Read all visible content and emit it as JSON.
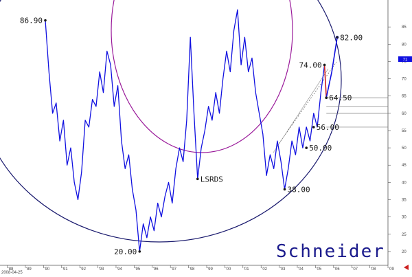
{
  "chart_data": {
    "type": "line",
    "title": "",
    "xlabel": "",
    "ylabel": "",
    "xlim": [
      1987.6,
      2009.0
    ],
    "ylim": [
      16,
      92
    ],
    "x_ticks": [
      "'88",
      "'89",
      "'90",
      "'91",
      "'92",
      "'93",
      "'94",
      "'95",
      "'96",
      "'97",
      "'98",
      "'99",
      "'00",
      "'01",
      "'02",
      "'03",
      "'04",
      "'05",
      "'06",
      "'07",
      "'08",
      "'09"
    ],
    "y_ticks": [
      "85",
      "80",
      "75",
      "70",
      "65",
      "60",
      "55",
      "50",
      "45",
      "40",
      "35",
      "30",
      "25",
      "20"
    ],
    "current_value": "71",
    "footer_text": "2008-04-25",
    "brand": "Schneider",
    "colors": {
      "price": "#1010e0",
      "arc_big": "#1a1a6e",
      "arc_small": "#9a1a9a",
      "arrow": "#cc2020",
      "guide": "#777777"
    },
    "series": [
      {
        "values": [
          [
            1990.1,
            86.9
          ],
          [
            1990.3,
            72
          ],
          [
            1990.5,
            60
          ],
          [
            1990.7,
            63
          ],
          [
            1990.9,
            52
          ],
          [
            1991.1,
            58
          ],
          [
            1991.3,
            45
          ],
          [
            1991.5,
            50
          ],
          [
            1991.7,
            40
          ],
          [
            1991.9,
            35
          ],
          [
            1992.1,
            43
          ],
          [
            1992.3,
            58
          ],
          [
            1992.5,
            56
          ],
          [
            1992.7,
            64
          ],
          [
            1992.9,
            62
          ],
          [
            1993.1,
            72
          ],
          [
            1993.3,
            66
          ],
          [
            1993.5,
            78
          ],
          [
            1993.7,
            74
          ],
          [
            1993.9,
            62
          ],
          [
            1994.1,
            68
          ],
          [
            1994.3,
            52
          ],
          [
            1994.5,
            44
          ],
          [
            1994.7,
            48
          ],
          [
            1994.9,
            38
          ],
          [
            1995.1,
            32
          ],
          [
            1995.3,
            20
          ],
          [
            1995.5,
            28
          ],
          [
            1995.7,
            24
          ],
          [
            1995.9,
            30
          ],
          [
            1996.1,
            26
          ],
          [
            1996.3,
            34
          ],
          [
            1996.5,
            30
          ],
          [
            1996.7,
            36
          ],
          [
            1996.9,
            40
          ],
          [
            1997.1,
            34
          ],
          [
            1997.3,
            44
          ],
          [
            1997.5,
            50
          ],
          [
            1997.7,
            46
          ],
          [
            1997.9,
            58
          ],
          [
            1998.1,
            82
          ],
          [
            1998.3,
            60
          ],
          [
            1998.5,
            41
          ],
          [
            1998.7,
            50
          ],
          [
            1998.9,
            55
          ],
          [
            1999.1,
            62
          ],
          [
            1999.3,
            58
          ],
          [
            1999.5,
            66
          ],
          [
            1999.7,
            60
          ],
          [
            1999.9,
            70
          ],
          [
            2000.1,
            78
          ],
          [
            2000.3,
            72
          ],
          [
            2000.5,
            84
          ],
          [
            2000.7,
            90
          ],
          [
            2000.9,
            74
          ],
          [
            2001.1,
            82
          ],
          [
            2001.3,
            72
          ],
          [
            2001.5,
            76
          ],
          [
            2001.7,
            66
          ],
          [
            2001.9,
            60
          ],
          [
            2002.1,
            54
          ],
          [
            2002.3,
            42
          ],
          [
            2002.5,
            48
          ],
          [
            2002.7,
            44
          ],
          [
            2002.9,
            52
          ],
          [
            2003.1,
            46
          ],
          [
            2003.3,
            38
          ],
          [
            2003.5,
            44
          ],
          [
            2003.7,
            52
          ],
          [
            2003.9,
            48
          ],
          [
            2004.1,
            56
          ],
          [
            2004.3,
            50
          ],
          [
            2004.5,
            56
          ],
          [
            2004.7,
            52
          ],
          [
            2004.9,
            60
          ],
          [
            2005.1,
            56
          ],
          [
            2005.3,
            66
          ],
          [
            2005.5,
            74
          ]
        ]
      }
    ],
    "projection": [
      [
        2005.6,
        64.5
      ],
      [
        2005.9,
        72
      ],
      [
        2006.2,
        82
      ]
    ],
    "annotations": [
      {
        "text": "86.90",
        "x": 1990.1,
        "y": 86.9,
        "anchor": "end"
      },
      {
        "text": "20.00",
        "x": 1995.3,
        "y": 20.0,
        "anchor": "end"
      },
      {
        "text": "LSRDS",
        "x": 1998.5,
        "y": 41.0,
        "anchor": "start"
      },
      {
        "text": "38.00",
        "x": 2003.3,
        "y": 38.0,
        "anchor": "start"
      },
      {
        "text": "50.00",
        "x": 2004.5,
        "y": 50.0,
        "anchor": "start"
      },
      {
        "text": "56.00",
        "x": 2004.9,
        "y": 56.0,
        "anchor": "start"
      },
      {
        "text": "64.50",
        "x": 2005.6,
        "y": 64.5,
        "anchor": "start"
      },
      {
        "text": "74.00",
        "x": 2005.5,
        "y": 74.0,
        "anchor": "end"
      },
      {
        "text": "82.00",
        "x": 2006.2,
        "y": 82.0,
        "anchor": "start"
      }
    ],
    "horizontal_levels": [
      64.5,
      62,
      60,
      56
    ],
    "grid": false,
    "legend": "none"
  }
}
